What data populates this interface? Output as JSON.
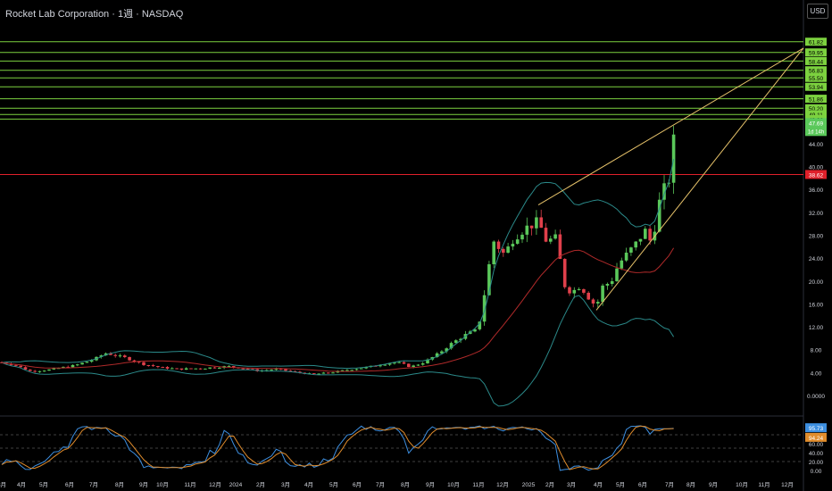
{
  "header": {
    "title": "Rocket Lab Corporation · 1週 · NASDAQ",
    "currency": "USD"
  },
  "colors": {
    "up": "#5ac85a",
    "down": "#e0404b",
    "level": "#7cd13f",
    "support": "#e0202a",
    "wedge": "#e6c26a",
    "bbBand": "#2b8a8a",
    "bbBasis": "#b02a2a",
    "stochK": "#3d8fe0",
    "stochD": "#e08c2c"
  },
  "chart_data": {
    "type": "candlestick",
    "x_ticks": [
      "3月",
      "4月",
      "5月",
      "6月",
      "7月",
      "8月",
      "9月",
      "10月",
      "11月",
      "12月",
      "2024",
      "2月",
      "3月",
      "4月",
      "5月",
      "6月",
      "7月",
      "8月",
      "9月",
      "10月",
      "11月",
      "12月",
      "2025",
      "2月",
      "3月",
      "4月",
      "5月",
      "6月",
      "7月",
      "8月",
      "9月",
      "10月",
      "11月",
      "12月"
    ],
    "y_ticks": [
      "0.0000",
      "4.00",
      "8.00",
      "12.00",
      "16.00",
      "20.00",
      "24.00",
      "28.00",
      "32.00",
      "36.00",
      "40.00",
      "44.00"
    ],
    "y_range": [
      0,
      64
    ],
    "levels": [
      {
        "value": 61.82,
        "label": "61.82"
      },
      {
        "value": 59.95,
        "label": "59.95"
      },
      {
        "value": 58.44,
        "label": "58.44"
      },
      {
        "value": 56.83,
        "label": "56.83"
      },
      {
        "value": 55.5,
        "label": "55.50"
      },
      {
        "value": 53.94,
        "label": "53.94"
      },
      {
        "value": 51.86,
        "label": "51.86"
      },
      {
        "value": 50.2,
        "label": "50.20"
      },
      {
        "value": 49.11,
        "label": "49.11"
      },
      {
        "value": 48.3,
        "label": "48.30"
      }
    ],
    "support": {
      "value": 38.62,
      "label": "38.62"
    },
    "last": {
      "value": 47.69,
      "label": "47.69",
      "countdown": "1d 14h"
    },
    "wedge": {
      "upper": [
        [
          0.0,
          33.3
        ],
        [
          0.3,
          60.7
        ]
      ],
      "lower": [
        [
          0.0,
          14.9
        ],
        [
          0.43,
          60.7
        ]
      ]
    },
    "oscillator": {
      "name": "Stochastic",
      "y_range": [
        0,
        100
      ],
      "y_ticks": [
        "0.00",
        "20.00",
        "40.00",
        "60.00",
        "80.00"
      ],
      "k_value": "95.73",
      "d_value": "94.24"
    }
  }
}
